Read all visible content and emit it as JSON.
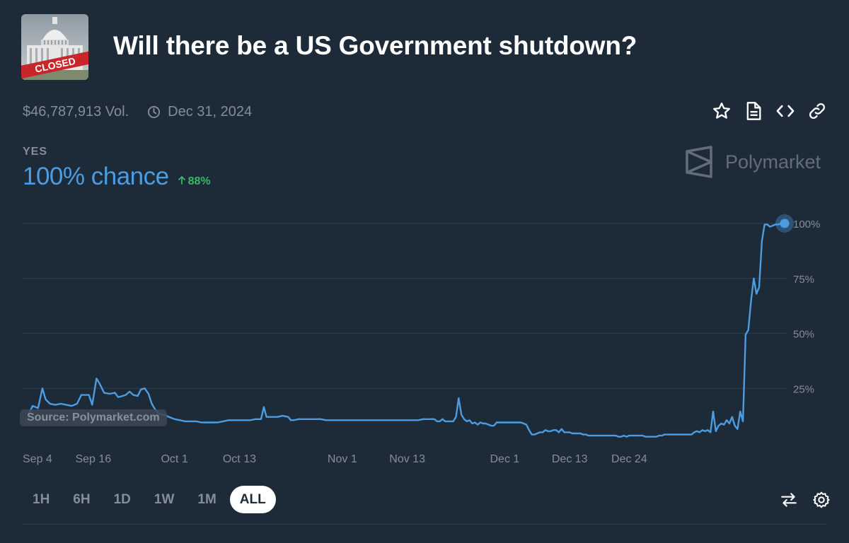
{
  "market": {
    "title": "Will there be a US Government shutdown?",
    "thumbnail_icon": "capitol-closed-image",
    "thumbnail_text": "CLOSED",
    "volume": "$46,787,913 Vol.",
    "end_date": "Dec 31, 2024"
  },
  "actions": [
    "star-icon",
    "document-icon",
    "code-icon",
    "link-icon"
  ],
  "outcome": {
    "label": "YES",
    "chance": "100% chance",
    "delta": "88%",
    "delta_color": "#3db468"
  },
  "brand": {
    "name": "Polymarket"
  },
  "source_note": "Source: Polymarket.com",
  "colors": {
    "line": "#4c9ce2",
    "background": "#1d2b39",
    "grid": "#2e3c4a"
  },
  "chart_data": {
    "type": "line",
    "series": [
      {
        "points": [
          [
            0.0,
            13
          ],
          [
            0.8,
            17
          ],
          [
            1.8,
            16
          ],
          [
            2.6,
            25
          ],
          [
            3.2,
            20
          ],
          [
            4.0,
            18
          ],
          [
            5.0,
            17.5
          ],
          [
            6.0,
            18
          ],
          [
            7.0,
            17.5
          ],
          [
            8.0,
            17
          ],
          [
            9.0,
            18
          ],
          [
            9.8,
            22
          ],
          [
            10.5,
            22
          ],
          [
            11.2,
            22
          ],
          [
            11.8,
            17.5
          ],
          [
            12.6,
            29.5
          ],
          [
            13.2,
            27
          ],
          [
            14.0,
            23
          ],
          [
            15.0,
            22.5
          ],
          [
            16.0,
            23
          ],
          [
            16.6,
            21
          ],
          [
            17.4,
            21.5
          ],
          [
            18.0,
            22
          ],
          [
            18.7,
            23.5
          ],
          [
            19.4,
            22
          ],
          [
            20.2,
            21.5
          ],
          [
            20.8,
            24.5
          ],
          [
            21.5,
            25
          ],
          [
            22.2,
            22.5
          ],
          [
            22.8,
            18
          ],
          [
            23.4,
            15.5
          ],
          [
            24.2,
            13.5
          ],
          [
            25.0,
            13
          ],
          [
            26.0,
            12
          ],
          [
            27.0,
            11
          ],
          [
            28.0,
            10.5
          ],
          [
            29.0,
            10
          ],
          [
            30.0,
            10
          ],
          [
            31.0,
            10
          ],
          [
            32.0,
            9.5
          ],
          [
            33.0,
            9.5
          ],
          [
            34.0,
            9.5
          ],
          [
            35.0,
            9.5
          ],
          [
            36.0,
            10
          ],
          [
            37.0,
            10.5
          ],
          [
            38.0,
            10.5
          ],
          [
            39.0,
            10.5
          ],
          [
            40.0,
            10.5
          ],
          [
            41.0,
            10.5
          ],
          [
            42.0,
            11
          ],
          [
            43.0,
            11
          ],
          [
            43.5,
            16.5
          ],
          [
            44.0,
            12
          ],
          [
            45.0,
            12
          ],
          [
            46.0,
            12
          ],
          [
            47.0,
            12.5
          ],
          [
            48.0,
            12
          ],
          [
            48.5,
            10.5
          ],
          [
            49.0,
            10.5
          ],
          [
            50.0,
            11
          ],
          [
            51.0,
            11
          ],
          [
            52.0,
            11
          ],
          [
            53.0,
            11
          ],
          [
            54.0,
            11
          ],
          [
            55.0,
            10.5
          ],
          [
            56.0,
            10.5
          ],
          [
            57.0,
            10.5
          ],
          [
            58.0,
            10.5
          ],
          [
            59.0,
            10.5
          ],
          [
            60.0,
            10.5
          ],
          [
            61.0,
            10.5
          ],
          [
            62.0,
            10.5
          ],
          [
            63.0,
            10.5
          ],
          [
            64.0,
            10.5
          ],
          [
            65.0,
            10.5
          ],
          [
            66.0,
            10.5
          ],
          [
            67.0,
            10.5
          ],
          [
            68.0,
            10.5
          ],
          [
            69.0,
            10.5
          ],
          [
            70.0,
            10.5
          ],
          [
            71.0,
            10.5
          ],
          [
            72.0,
            10.5
          ],
          [
            73.0,
            11
          ],
          [
            74.0,
            11
          ],
          [
            75.0,
            11
          ],
          [
            75.5,
            10
          ],
          [
            76.0,
            10
          ],
          [
            76.5,
            11
          ],
          [
            77.0,
            10
          ],
          [
            77.5,
            10
          ],
          [
            78.0,
            10
          ],
          [
            78.5,
            10
          ],
          [
            79.0,
            12
          ],
          [
            79.5,
            20.5
          ],
          [
            80.0,
            13
          ],
          [
            80.5,
            11
          ],
          [
            81.0,
            10
          ],
          [
            81.5,
            10.5
          ],
          [
            82.0,
            9
          ],
          [
            82.5,
            9.5
          ],
          [
            83.0,
            8.5
          ],
          [
            83.5,
            9.5
          ],
          [
            84.0,
            9
          ],
          [
            84.5,
            9
          ],
          [
            85.0,
            8.5
          ],
          [
            85.5,
            8
          ],
          [
            86.0,
            8
          ],
          [
            86.5,
            9.5
          ],
          [
            87.0,
            9.5
          ],
          [
            87.5,
            9.5
          ],
          [
            88.0,
            9.5
          ],
          [
            88.5,
            9.5
          ],
          [
            89.0,
            9.5
          ],
          [
            89.5,
            9.5
          ],
          [
            90.0,
            9.5
          ],
          [
            90.5,
            9.5
          ],
          [
            91.0,
            9.5
          ],
          [
            91.5,
            9
          ],
          [
            92.0,
            8.5
          ],
          [
            92.5,
            6
          ],
          [
            93.0,
            4
          ],
          [
            93.5,
            4
          ],
          [
            94.0,
            4.5
          ],
          [
            94.5,
            5
          ],
          [
            95.0,
            5
          ],
          [
            95.5,
            6
          ],
          [
            96.0,
            5.5
          ],
          [
            96.5,
            5.5
          ],
          [
            97.0,
            6
          ],
          [
            97.5,
            6
          ],
          [
            98.0,
            5
          ],
          [
            98.5,
            6.5
          ],
          [
            99.0,
            5
          ],
          [
            99.5,
            5
          ],
          [
            100.0,
            5
          ],
          [
            100.5,
            4.5
          ],
          [
            101.0,
            4.5
          ],
          [
            101.5,
            4.5
          ],
          [
            102.0,
            4.5
          ],
          [
            102.5,
            4
          ],
          [
            103.0,
            4
          ],
          [
            103.5,
            3.5
          ],
          [
            104.0,
            3.5
          ],
          [
            104.5,
            3.5
          ],
          [
            105.0,
            3.5
          ],
          [
            105.5,
            3.5
          ],
          [
            106.0,
            3.5
          ],
          [
            106.5,
            3.5
          ],
          [
            107.0,
            3.5
          ],
          [
            107.5,
            3.5
          ],
          [
            108.0,
            3.5
          ],
          [
            108.5,
            3.5
          ],
          [
            109.0,
            3
          ],
          [
            109.5,
            3
          ],
          [
            110.0,
            3.5
          ],
          [
            110.5,
            3
          ],
          [
            111.0,
            3.5
          ],
          [
            111.5,
            3.5
          ],
          [
            112.0,
            3.5
          ],
          [
            112.5,
            3.5
          ],
          [
            113.0,
            3.5
          ],
          [
            113.5,
            3.5
          ],
          [
            114.0,
            3
          ],
          [
            114.5,
            3
          ],
          [
            115.0,
            3
          ],
          [
            115.5,
            3
          ],
          [
            116.0,
            3
          ],
          [
            116.5,
            3.5
          ],
          [
            117.0,
            3.5
          ],
          [
            117.5,
            4
          ],
          [
            118.0,
            4
          ],
          [
            118.5,
            4
          ],
          [
            119.0,
            4
          ],
          [
            119.5,
            4
          ],
          [
            120.0,
            4
          ],
          [
            120.5,
            4
          ],
          [
            121.0,
            4
          ],
          [
            121.5,
            4
          ],
          [
            122.0,
            4
          ],
          [
            122.5,
            4
          ],
          [
            123.0,
            5
          ],
          [
            123.5,
            5.5
          ],
          [
            124.0,
            5
          ],
          [
            124.5,
            6
          ],
          [
            125.0,
            5.5
          ],
          [
            125.5,
            6
          ],
          [
            126.0,
            5
          ],
          [
            126.5,
            14.5
          ],
          [
            127.0,
            5.5
          ],
          [
            127.5,
            8
          ],
          [
            128.0,
            9
          ],
          [
            128.5,
            8.5
          ],
          [
            129.0,
            10.5
          ],
          [
            129.5,
            9
          ],
          [
            130.0,
            12
          ],
          [
            130.5,
            8
          ],
          [
            131.0,
            6.5
          ],
          [
            131.5,
            14.5
          ],
          [
            132.0,
            10
          ],
          [
            132.5,
            49.5
          ],
          [
            133.0,
            51.5
          ],
          [
            133.5,
            65
          ],
          [
            134.0,
            75
          ],
          [
            134.5,
            68
          ],
          [
            135.0,
            71
          ],
          [
            135.5,
            92
          ],
          [
            136.0,
            99.5
          ],
          [
            136.5,
            99.5
          ],
          [
            137.0,
            98.5
          ],
          [
            137.5,
            99
          ],
          [
            138.0,
            99.5
          ],
          [
            138.5,
            99.5
          ],
          [
            139.0,
            100
          ],
          [
            139.7,
            100
          ]
        ]
      }
    ],
    "x_ticks": [
      {
        "x": 0.0,
        "label": "Sep 4"
      },
      {
        "x": 12.0,
        "label": "Sep 16"
      },
      {
        "x": 27.0,
        "label": "Oct 1"
      },
      {
        "x": 39.0,
        "label": "Oct 13"
      },
      {
        "x": 58.0,
        "label": "Nov 1"
      },
      {
        "x": 70.0,
        "label": "Nov 13"
      },
      {
        "x": 88.0,
        "label": "Dec 1"
      },
      {
        "x": 100.0,
        "label": "Dec 13"
      },
      {
        "x": 111.0,
        "label": "Dec 24"
      }
    ],
    "y_ticks": [
      {
        "y": 100,
        "label": "100%"
      },
      {
        "y": 75,
        "label": "75%"
      },
      {
        "y": 50,
        "label": "50%"
      },
      {
        "y": 25,
        "label": "25%"
      }
    ],
    "xlim": [
      0,
      139.7
    ],
    "ylim": [
      0,
      100
    ],
    "grid": true
  },
  "ranges": [
    "1H",
    "6H",
    "1D",
    "1W",
    "1M",
    "ALL"
  ],
  "selected_range": "ALL",
  "controls": [
    "swap-icon",
    "settings-icon"
  ]
}
